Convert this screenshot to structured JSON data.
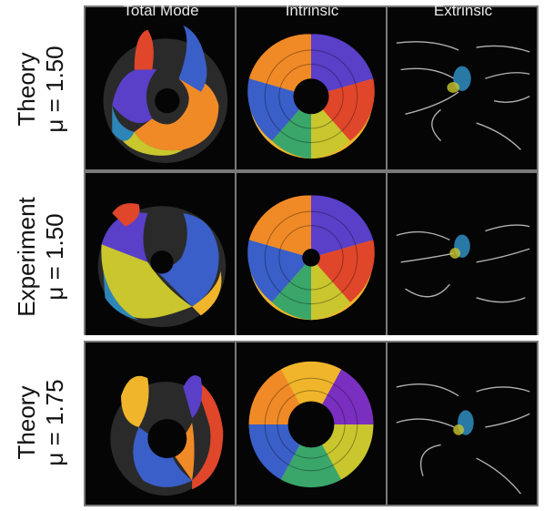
{
  "columns": [
    "Total Mode",
    "Intrinsic",
    "Extrinsic"
  ],
  "rows": [
    {
      "line1": "Theory",
      "line2": "μ = 1.50"
    },
    {
      "line1": "Experiment",
      "line2": "μ = 1.50"
    },
    {
      "line1": "Theory",
      "line2": "μ = 1.75"
    }
  ],
  "colors": {
    "background": "#050505",
    "frame": "#7a7a7a",
    "phase_wheel": [
      "#e0462a",
      "#f08a26",
      "#f0b52a",
      "#c9c62e",
      "#7fbd3d",
      "#3aa66a",
      "#2e86b8",
      "#3a5fc8",
      "#5a3fc8",
      "#7a2fc0"
    ]
  }
}
